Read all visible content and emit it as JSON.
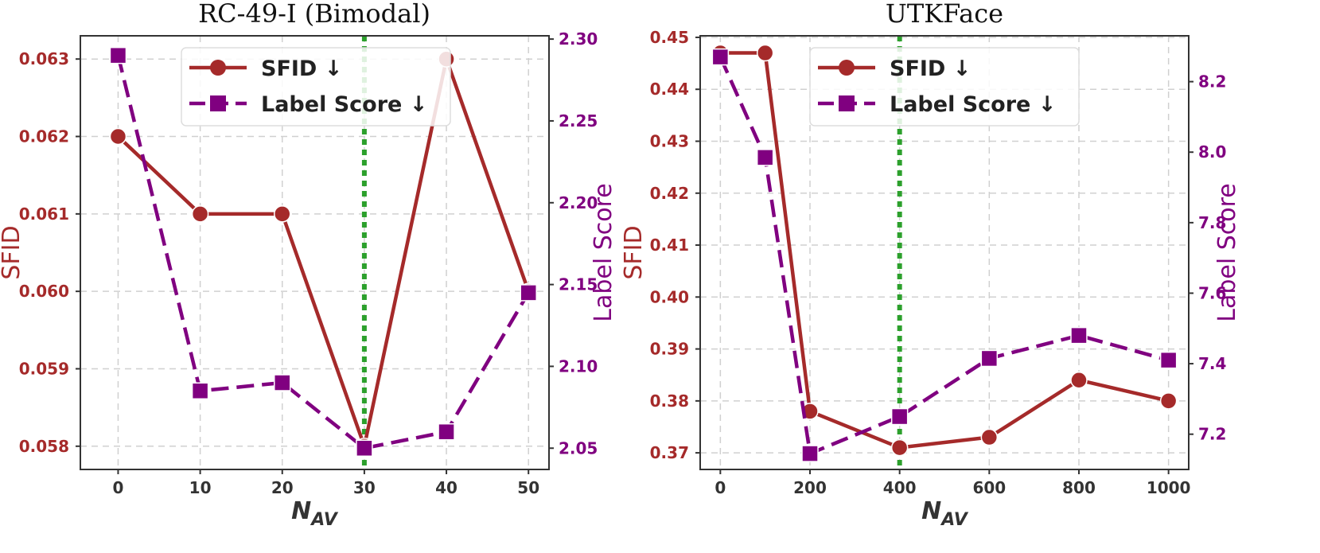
{
  "colors": {
    "sfid": "#a52a2a",
    "label_score": "#800080",
    "highlight": "#2ca02c",
    "grid": "#d0d0d0",
    "axis": "#333333"
  },
  "chart_data": [
    {
      "type": "line",
      "title": "RC-49-I (Bimodal)",
      "xlabel_main": "N",
      "xlabel_sub": "AV",
      "ylabel_left": "SFID",
      "ylabel_right": "Label Score",
      "x": [
        0,
        10,
        20,
        30,
        40,
        50
      ],
      "xticks": [
        "0",
        "10",
        "20",
        "30",
        "40",
        "50"
      ],
      "xlim": [
        -4.6,
        52.5
      ],
      "highlight_x": 30,
      "left_axis": {
        "ylim": [
          0.0577,
          0.0633
        ],
        "ticks": [
          0.058,
          0.059,
          0.06,
          0.061,
          0.062,
          0.063
        ],
        "tick_labels": [
          "0.058",
          "0.059",
          "0.060",
          "0.061",
          "0.062",
          "0.063"
        ]
      },
      "right_axis": {
        "ylim": [
          2.037,
          2.302
        ],
        "ticks": [
          2.05,
          2.1,
          2.15,
          2.2,
          2.25,
          2.3
        ],
        "tick_labels": [
          "2.05",
          "2.10",
          "2.15",
          "2.20",
          "2.25",
          "2.30"
        ]
      },
      "series": [
        {
          "name": "SFID ↓",
          "axis": "left",
          "style": "solid-circle",
          "values": [
            0.062,
            0.061,
            0.061,
            0.058,
            0.063,
            0.06
          ]
        },
        {
          "name": "Label Score ↓",
          "axis": "right",
          "style": "dashed-square",
          "values": [
            2.29,
            2.085,
            2.09,
            2.05,
            2.06,
            2.145
          ]
        }
      ],
      "legend": "top-center"
    },
    {
      "type": "line",
      "title": "UTKFace",
      "xlabel_main": "N",
      "xlabel_sub": "AV",
      "ylabel_left": "SFID",
      "ylabel_right": "Label Score",
      "x": [
        0,
        100,
        200,
        400,
        600,
        800,
        1000
      ],
      "xticks": [
        "0",
        "200",
        "400",
        "600",
        "800",
        "1000"
      ],
      "xtick_values": [
        0,
        200,
        400,
        600,
        800,
        1000
      ],
      "xlim": [
        -45,
        1045
      ],
      "highlight_x": 400,
      "left_axis": {
        "ylim": [
          0.3668,
          0.4503
        ],
        "ticks": [
          0.37,
          0.38,
          0.39,
          0.4,
          0.41,
          0.42,
          0.43,
          0.44,
          0.45
        ],
        "tick_labels": [
          "0.37",
          "0.38",
          "0.39",
          "0.40",
          "0.41",
          "0.42",
          "0.43",
          "0.44",
          "0.45"
        ]
      },
      "right_axis": {
        "ylim": [
          7.1,
          8.33
        ],
        "ticks": [
          7.2,
          7.4,
          7.6,
          7.8,
          8.0,
          8.2
        ],
        "tick_labels": [
          "7.2",
          "7.4",
          "7.6",
          "7.8",
          "8.0",
          "8.2"
        ]
      },
      "series": [
        {
          "name": "SFID ↓",
          "axis": "left",
          "style": "solid-circle",
          "values": [
            0.447,
            0.447,
            0.378,
            0.371,
            0.373,
            0.384,
            0.38
          ]
        },
        {
          "name": "Label Score ↓",
          "axis": "right",
          "style": "dashed-square",
          "values": [
            8.27,
            7.985,
            7.145,
            7.25,
            7.415,
            7.48,
            7.41
          ]
        }
      ],
      "legend": "top-center"
    }
  ]
}
